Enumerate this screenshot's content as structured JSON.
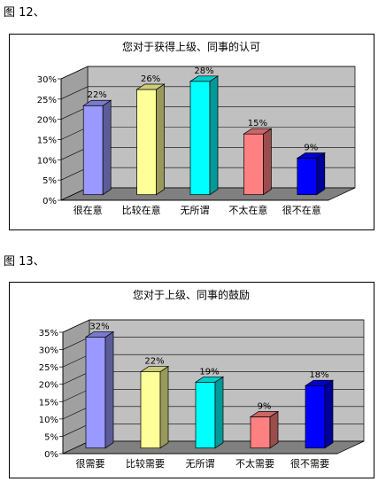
{
  "figures": [
    {
      "label": "图 12、",
      "chart_data": {
        "type": "bar",
        "title": "您对于获得上级、同事的认可",
        "categories": [
          "很在意",
          "比较在意",
          "无所谓",
          "不太在意",
          "很不在意"
        ],
        "values": [
          22,
          26,
          28,
          15,
          9
        ],
        "data_labels": [
          "22%",
          "26%",
          "28%",
          "15%",
          "9%"
        ],
        "colors": [
          "#9999ff",
          "#ffff99",
          "#00ffff",
          "#ff8080",
          "#0000ff"
        ],
        "ylim": [
          0,
          30
        ],
        "yticks": [
          "0%",
          "5%",
          "10%",
          "15%",
          "20%",
          "25%",
          "30%"
        ],
        "grid": true,
        "plot_bg": "#c0c0c0",
        "xlabel": "",
        "ylabel": ""
      }
    },
    {
      "label": "图 13、",
      "chart_data": {
        "type": "bar",
        "title": "您对于上级、同事的鼓励",
        "categories": [
          "很需要",
          "比较需要",
          "无所谓",
          "不太需要",
          "很不需要"
        ],
        "values": [
          32,
          22,
          19,
          9,
          18
        ],
        "data_labels": [
          "32%",
          "22%",
          "19%",
          "9%",
          "18%"
        ],
        "colors": [
          "#9999ff",
          "#ffff99",
          "#00ffff",
          "#ff8080",
          "#0000ff"
        ],
        "ylim": [
          0,
          35
        ],
        "yticks": [
          "0%",
          "5%",
          "10%",
          "15%",
          "20%",
          "25%",
          "30%",
          "35%"
        ],
        "grid": true,
        "plot_bg": "#c0c0c0",
        "xlabel": "",
        "ylabel": ""
      }
    }
  ]
}
